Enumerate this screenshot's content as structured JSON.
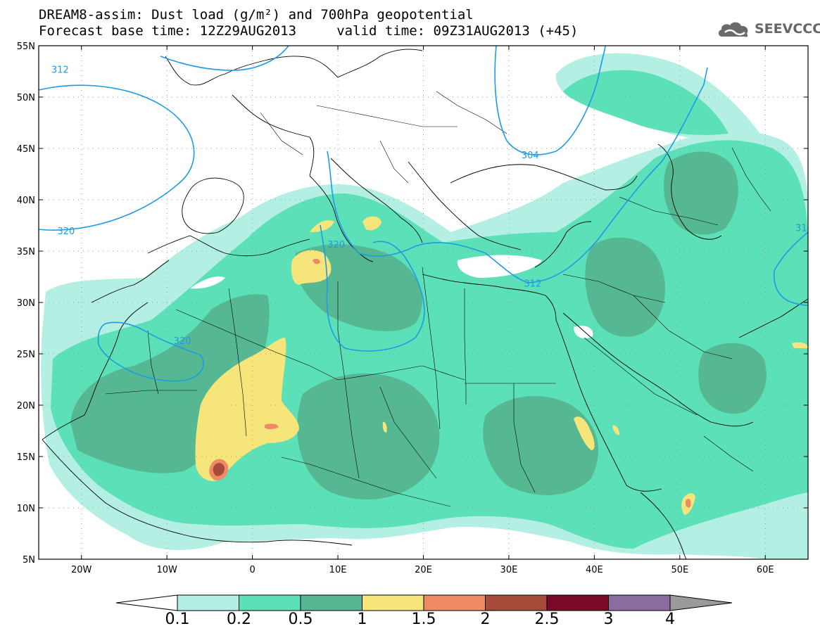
{
  "title_line1": "DREAM8-assim: Dust load (g/m²) and 700hPa geopotential",
  "title_line2": "Forecast base time: 12Z29AUG2013     valid time: 09Z31AUG2013 (+45)",
  "logo_text": "SEEVCCC",
  "logo_icon": "cloud-logo-icon",
  "map": {
    "lon_range": [
      -25,
      65
    ],
    "lat_range": [
      5,
      55
    ],
    "lat_ticks": [
      "55N",
      "50N",
      "45N",
      "40N",
      "35N",
      "30N",
      "25N",
      "20N",
      "15N",
      "10N",
      "5N"
    ],
    "lon_ticks": [
      "20W",
      "10W",
      "0",
      "10E",
      "20E",
      "30E",
      "40E",
      "50E",
      "60E"
    ],
    "contour_labels": [
      {
        "text": "312",
        "lon": -22.5,
        "lat": 52.7
      },
      {
        "text": "304",
        "lon": 32.5,
        "lat": 44.4
      },
      {
        "text": "320",
        "lon": -21.8,
        "lat": 37.0
      },
      {
        "text": "320",
        "lon": 9.8,
        "lat": 35.7
      },
      {
        "text": "312",
        "lon": 32.8,
        "lat": 31.9
      },
      {
        "text": "320",
        "lon": -8.2,
        "lat": 26.3
      },
      {
        "text": "31",
        "lon": 64.2,
        "lat": 37.3
      }
    ],
    "contour_color": "#1e9be6"
  },
  "colorbar": {
    "levels": [
      "0.1",
      "0.2",
      "0.5",
      "1",
      "1.5",
      "2",
      "2.5",
      "3",
      "4"
    ],
    "colors": [
      "#b3efe2",
      "#5be0b7",
      "#55b892",
      "#f5e57a",
      "#ee8a65",
      "#a84a3a",
      "#7a0a28",
      "#8b6ba0"
    ]
  },
  "dust_colors": {
    "light": "#b3efe2",
    "medium": "#5be0b7",
    "dark": "#55b892",
    "yellow": "#f5e57a",
    "orange": "#ee8a65",
    "brown": "#a84a3a"
  }
}
